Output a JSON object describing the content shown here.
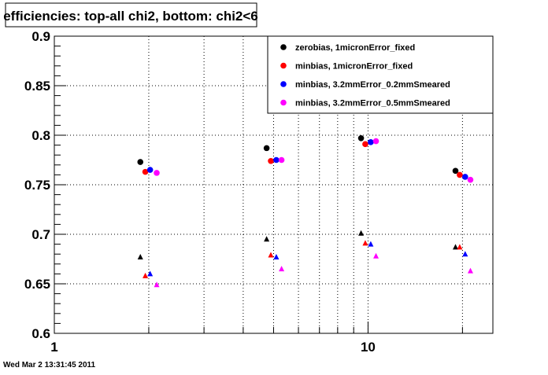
{
  "title": "efficiencies: top-all chi2, bottom: chi2<6",
  "footer": "Wed Mar  2 13:31:45 2011",
  "colors": {
    "frame": "#000000",
    "grid": "#000000",
    "series": [
      "#000000",
      "#ff0000",
      "#0000ff",
      "#ff00ff"
    ]
  },
  "chart_data": {
    "type": "scatter",
    "x_scale": "log",
    "xlim": [
      1,
      25
    ],
    "ylim": [
      0.6,
      0.9
    ],
    "grid": true,
    "legend_position": "top-right",
    "x_ticks": [
      1,
      10
    ],
    "x_tick_labels": [
      "1",
      "10"
    ],
    "y_ticks": [
      0.6,
      0.65,
      0.7,
      0.75,
      0.8,
      0.85,
      0.9
    ],
    "y_tick_labels": [
      "0.6",
      "0.65",
      "0.7",
      "0.75",
      "0.8",
      "0.85",
      "0.9"
    ],
    "series": [
      {
        "name": "zerobias, 1micronError_fixed",
        "top_all_chi2": [
          [
            1.88,
            0.773
          ],
          [
            4.75,
            0.787
          ],
          [
            9.5,
            0.797
          ],
          [
            19.0,
            0.764
          ]
        ],
        "bottom_chi2_lt_6": [
          [
            1.88,
            0.677
          ],
          [
            4.75,
            0.695
          ],
          [
            9.5,
            0.701
          ],
          [
            19.0,
            0.687
          ]
        ]
      },
      {
        "name": "minbias, 1micronError_fixed",
        "top_all_chi2": [
          [
            1.95,
            0.763
          ],
          [
            4.9,
            0.774
          ],
          [
            9.8,
            0.791
          ],
          [
            19.6,
            0.76
          ]
        ],
        "bottom_chi2_lt_6": [
          [
            1.95,
            0.658
          ],
          [
            4.9,
            0.679
          ],
          [
            9.8,
            0.691
          ],
          [
            19.6,
            0.687
          ]
        ]
      },
      {
        "name": "minbias, 3.2mmError_0.2mmSmeared",
        "top_all_chi2": [
          [
            2.02,
            0.765
          ],
          [
            5.1,
            0.775
          ],
          [
            10.2,
            0.793
          ],
          [
            20.4,
            0.758
          ]
        ],
        "bottom_chi2_lt_6": [
          [
            2.02,
            0.66
          ],
          [
            5.1,
            0.677
          ],
          [
            10.2,
            0.69
          ],
          [
            20.4,
            0.68
          ]
        ]
      },
      {
        "name": "minbias, 3.2mmError_0.5mmSmeared",
        "top_all_chi2": [
          [
            2.12,
            0.762
          ],
          [
            5.3,
            0.775
          ],
          [
            10.6,
            0.794
          ],
          [
            21.2,
            0.755
          ]
        ],
        "bottom_chi2_lt_6": [
          [
            2.12,
            0.649
          ],
          [
            5.3,
            0.665
          ],
          [
            10.6,
            0.678
          ],
          [
            21.2,
            0.663
          ]
        ]
      }
    ]
  }
}
